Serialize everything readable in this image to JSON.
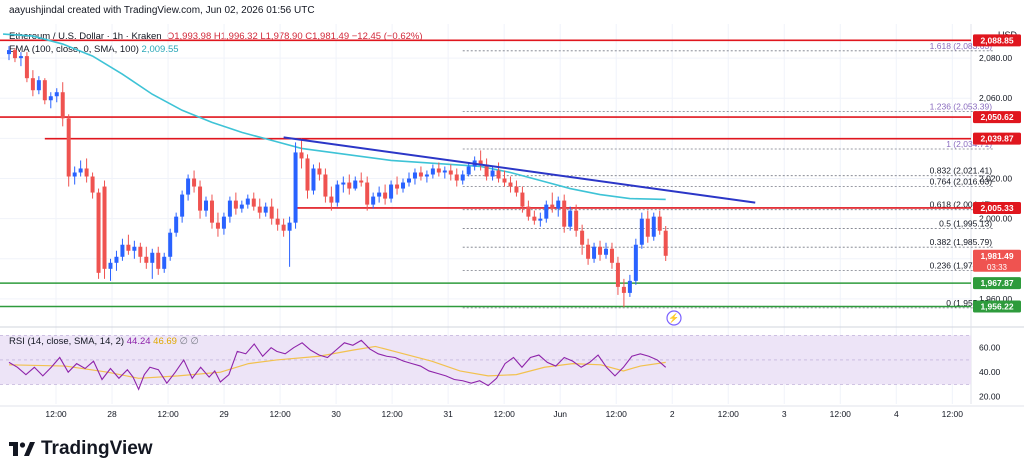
{
  "publisher_line": "aayushjindal created with TradingView.com, Jun 02, 2026 01:56 UTC",
  "legend": {
    "symbol": "Ethereum / U.S. Dollar · 1h · Kraken",
    "ohlc": "O1,993.98 H1,996.32 L1,978.90 C1,981.49 −12.45 (−0.62%)",
    "ema_label": "EMA (100, close, 0, SMA, 100)",
    "ema_value": "2,009.55",
    "rsi_label": "RSI (14, close, SMA, 14, 2)",
    "rsi_value": "44.24",
    "rsi_sma_value": "46.69",
    "rsi_extra": "∅ ∅"
  },
  "brand": "TradingView",
  "currency": "USD",
  "colors": {
    "up": "#26a69a",
    "down": "#ef5350",
    "ema": "#3ec3d6",
    "trendline": "#2b36c7",
    "resistance": "#e0161e",
    "support": "#2e9b3c",
    "rsi": "#8e24aa",
    "rsi_sma": "#f2c14e"
  },
  "chart_data": {
    "type": "candlestick",
    "price_axis": {
      "ylim": [
        1948,
        2097
      ],
      "ticks": [
        "2,080.00",
        "2,060.00",
        "2,020.00",
        "2,000.00",
        "1,980.00",
        "1,960.00"
      ]
    },
    "time_axis": {
      "labels": [
        "12:00",
        "28",
        "12:00",
        "29",
        "12:00",
        "30",
        "12:00",
        "31",
        "12:00",
        "Jun",
        "12:00",
        "2",
        "12:00",
        "3",
        "12:00",
        "4",
        "12:00"
      ],
      "label_hours": [
        12,
        24,
        36,
        48,
        60,
        72,
        84,
        96,
        108,
        120,
        132,
        144,
        156,
        168,
        180,
        192,
        204
      ],
      "xlim_hours": [
        0,
        208
      ]
    },
    "candles": [
      [
        1,
        2082,
        2086,
        2079,
        2084
      ],
      [
        2,
        2084,
        2085,
        2078,
        2080
      ],
      [
        3,
        2080,
        2083,
        2076,
        2081
      ],
      [
        4,
        2081,
        2083,
        2068,
        2070
      ],
      [
        5,
        2070,
        2074,
        2061,
        2064
      ],
      [
        6,
        2064,
        2071,
        2062,
        2069
      ],
      [
        7,
        2069,
        2070,
        2057,
        2059
      ],
      [
        8,
        2059,
        2063,
        2055,
        2061
      ],
      [
        9,
        2061,
        2065,
        2058,
        2063
      ],
      [
        10,
        2063,
        2068,
        2046,
        2050
      ],
      [
        11,
        2050,
        2052,
        2016,
        2021
      ],
      [
        12,
        2021,
        2026,
        2017,
        2023
      ],
      [
        13,
        2023,
        2029,
        2021,
        2025
      ],
      [
        14,
        2025,
        2030,
        2018,
        2021
      ],
      [
        15,
        2021,
        2023,
        2010,
        2013
      ],
      [
        16,
        2013,
        2015,
        1970,
        1973
      ],
      [
        17,
        2016,
        2019,
        1970,
        1975
      ],
      [
        18,
        1975,
        1980,
        1969,
        1978
      ],
      [
        19,
        1978,
        1984,
        1974,
        1981
      ],
      [
        20,
        1981,
        1990,
        1979,
        1987
      ],
      [
        21,
        1987,
        1992,
        1982,
        1984
      ],
      [
        22,
        1984,
        1989,
        1980,
        1986
      ],
      [
        23,
        1986,
        1988,
        1978,
        1981
      ],
      [
        24,
        1981,
        1986,
        1975,
        1978
      ],
      [
        25,
        1978,
        1985,
        1970,
        1983
      ],
      [
        26,
        1983,
        1986,
        1972,
        1975
      ],
      [
        27,
        1975,
        1983,
        1973,
        1981
      ],
      [
        28,
        1981,
        1995,
        1979,
        1993
      ],
      [
        29,
        1993,
        2003,
        1991,
        2001
      ],
      [
        30,
        2001,
        2014,
        1998,
        2012
      ],
      [
        31,
        2012,
        2022,
        2009,
        2020
      ],
      [
        32,
        2020,
        2024,
        2013,
        2016
      ],
      [
        33,
        2016,
        2019,
        2000,
        2004
      ],
      [
        34,
        2004,
        2011,
        2001,
        2009
      ],
      [
        35,
        2009,
        2012,
        1995,
        1998
      ],
      [
        36,
        1998,
        2003,
        1991,
        1995
      ],
      [
        37,
        1995,
        2003,
        1992,
        2001
      ],
      [
        38,
        2001,
        2011,
        1998,
        2009
      ],
      [
        39,
        2009,
        2013,
        2002,
        2005
      ],
      [
        40,
        2005,
        2009,
        2003,
        2007
      ],
      [
        41,
        2007,
        2012,
        2005,
        2010
      ],
      [
        42,
        2010,
        2013,
        2004,
        2006
      ],
      [
        43,
        2006,
        2010,
        2000,
        2003
      ],
      [
        44,
        2003,
        2008,
        2001,
        2006
      ],
      [
        45,
        2006,
        2010,
        1997,
        2000
      ],
      [
        46,
        2000,
        2005,
        1994,
        1997
      ],
      [
        47,
        1997,
        2000,
        1991,
        1994
      ],
      [
        48,
        1994,
        2001,
        1976,
        1998
      ],
      [
        49,
        1998,
        2038,
        1995,
        2033
      ],
      [
        50,
        2033,
        2040,
        2025,
        2030
      ],
      [
        51,
        2030,
        2032,
        2010,
        2014
      ],
      [
        52,
        2014,
        2027,
        2012,
        2025
      ],
      [
        53,
        2025,
        2028,
        2019,
        2022
      ],
      [
        54,
        2022,
        2025,
        2008,
        2011
      ],
      [
        55,
        2011,
        2016,
        2004,
        2008
      ],
      [
        56,
        2008,
        2019,
        2006,
        2017
      ],
      [
        57,
        2017,
        2021,
        2013,
        2018
      ],
      [
        58,
        2018,
        2022,
        2012,
        2015
      ],
      [
        59,
        2015,
        2021,
        2014,
        2019
      ],
      [
        60,
        2019,
        2023,
        2016,
        2018
      ],
      [
        61,
        2018,
        2021,
        2004,
        2007
      ],
      [
        62,
        2007,
        2013,
        2005,
        2011
      ],
      [
        63,
        2011,
        2016,
        2008,
        2013
      ],
      [
        64,
        2013,
        2017,
        2007,
        2010
      ],
      [
        65,
        2010,
        2019,
        2008,
        2017
      ],
      [
        66,
        2017,
        2021,
        2012,
        2015
      ],
      [
        67,
        2015,
        2020,
        2013,
        2018
      ],
      [
        68,
        2018,
        2023,
        2016,
        2020
      ],
      [
        69,
        2020,
        2025,
        2017,
        2023
      ],
      [
        70,
        2023,
        2026,
        2019,
        2021
      ],
      [
        71,
        2021,
        2024,
        2018,
        2022
      ],
      [
        72,
        2022,
        2027,
        2020,
        2025
      ],
      [
        73,
        2025,
        2028,
        2021,
        2023
      ],
      [
        74,
        2023,
        2026,
        2020,
        2024
      ],
      [
        75,
        2024,
        2027,
        2019,
        2022
      ],
      [
        76,
        2022,
        2025,
        2016,
        2019
      ],
      [
        77,
        2019,
        2024,
        2017,
        2022
      ],
      [
        78,
        2022,
        2028,
        2021,
        2026
      ],
      [
        79,
        2026,
        2031,
        2024,
        2029
      ],
      [
        80,
        2029,
        2034,
        2024,
        2027
      ],
      [
        81,
        2027,
        2030,
        2019,
        2021
      ],
      [
        82,
        2021,
        2026,
        2019,
        2024
      ],
      [
        83,
        2024,
        2028,
        2018,
        2020
      ],
      [
        84,
        2020,
        2024,
        2016,
        2018
      ],
      [
        85,
        2018,
        2021,
        2013,
        2016
      ],
      [
        86,
        2016,
        2019,
        2011,
        2013
      ],
      [
        87,
        2013,
        2016,
        2003,
        2006
      ],
      [
        88,
        2006,
        2009,
        1999,
        2001
      ],
      [
        89,
        2001,
        2004,
        1997,
        1999
      ],
      [
        90,
        1999,
        2003,
        1996,
        2000
      ],
      [
        91,
        2000,
        2009,
        1998,
        2007
      ],
      [
        92,
        2007,
        2013,
        2003,
        2005
      ],
      [
        93,
        2005,
        2011,
        2001,
        2009
      ],
      [
        94,
        2009,
        2012,
        1993,
        1996
      ],
      [
        95,
        1996,
        2006,
        1994,
        2004
      ],
      [
        96,
        2004,
        2007,
        1991,
        1994
      ],
      [
        97,
        1994,
        1997,
        1982,
        1987
      ],
      [
        98,
        1987,
        1990,
        1977,
        1980
      ],
      [
        99,
        1980,
        1988,
        1978,
        1986
      ],
      [
        100,
        1986,
        1989,
        1979,
        1982
      ],
      [
        101,
        1982,
        1988,
        1980,
        1985
      ],
      [
        102,
        1985,
        1988,
        1975,
        1978
      ],
      [
        103,
        1978,
        1981,
        1962,
        1966
      ],
      [
        104,
        1966,
        1970,
        1956,
        1963
      ],
      [
        105,
        1963,
        1972,
        1961,
        1969
      ],
      [
        106,
        1969,
        1990,
        1967,
        1987
      ],
      [
        107,
        1987,
        2003,
        1985,
        2000
      ],
      [
        108,
        2000,
        2004,
        1988,
        1991
      ],
      [
        109,
        1991,
        2003,
        1989,
        2001
      ],
      [
        110,
        2001,
        2004,
        1992,
        1994
      ],
      [
        111,
        1994,
        1996.32,
        1978.9,
        1981.49
      ]
    ],
    "ema": {
      "name": "EMA (100, close, 0, SMA, 100)",
      "points": [
        [
          0,
          2092
        ],
        [
          5,
          2091
        ],
        [
          10,
          2087
        ],
        [
          15,
          2081
        ],
        [
          20,
          2072
        ],
        [
          25,
          2062
        ],
        [
          30,
          2054
        ],
        [
          35,
          2048
        ],
        [
          40,
          2043
        ],
        [
          45,
          2039
        ],
        [
          50,
          2035
        ],
        [
          55,
          2033
        ],
        [
          60,
          2031
        ],
        [
          65,
          2029
        ],
        [
          70,
          2028
        ],
        [
          75,
          2027
        ],
        [
          80,
          2026
        ],
        [
          85,
          2023
        ],
        [
          90,
          2019
        ],
        [
          95,
          2015
        ],
        [
          100,
          2012
        ],
        [
          105,
          2010
        ],
        [
          111,
          2009.55
        ]
      ]
    },
    "horizontal_lines": [
      {
        "value": 2088.85,
        "x_start": 0,
        "label": "2,088.85",
        "kind": "resistance"
      },
      {
        "value": 2050.62,
        "x_start": 0,
        "label": "2,050.62",
        "kind": "resistance"
      },
      {
        "value": 2039.87,
        "x_start": 7,
        "label": "2,039.87",
        "kind": "resistance"
      },
      {
        "value": 2005.33,
        "x_start": 49,
        "label": "2,005.33",
        "kind": "resistance"
      },
      {
        "value": 1967.87,
        "x_start": 0,
        "label": "1,967.87",
        "kind": "support"
      },
      {
        "value": 1956.22,
        "x_start": 0,
        "label": "1,956.22",
        "kind": "support"
      }
    ],
    "trendline": {
      "x": [
        47,
        126
      ],
      "y": [
        2040.5,
        2008
      ]
    },
    "current_price": {
      "value": 1981.49,
      "label": "1,981.49",
      "countdown": "03:33"
    },
    "fibonacci": {
      "x_range": [
        77,
        166
      ],
      "levels": [
        {
          "ratio": "1.618",
          "value": 2083.63,
          "label": "1.618 (2,083.63)"
        },
        {
          "ratio": "1.236",
          "value": 2053.39,
          "label": "1.236 (2,053.39)"
        },
        {
          "ratio": "1",
          "value": 2034.71,
          "label": "1 (2,034.71)"
        },
        {
          "ratio": "0.832",
          "value": 2021.41,
          "label": "0.832 (2,021.41)"
        },
        {
          "ratio": "0.764",
          "value": 2016.03,
          "label": "0.764 (2,016.03)"
        },
        {
          "ratio": "0.618",
          "value": 2004.47,
          "label": "0.618 (2,004.47)"
        },
        {
          "ratio": "0.5",
          "value": 1995.13,
          "label": "0.5 (1,995.13)"
        },
        {
          "ratio": "0.382",
          "value": 1985.79,
          "label": "0.382 (1,985.79)"
        },
        {
          "ratio": "0.236",
          "value": 1974.23,
          "label": "0.236 (1,974.23)"
        },
        {
          "ratio": "0",
          "value": 1955.55,
          "label": "0 (1,955.55)"
        }
      ]
    },
    "rsi": {
      "ylim": [
        14,
        72
      ],
      "ticks": [
        "60.00",
        "40.00",
        "20.00"
      ],
      "band": [
        30,
        70
      ],
      "values": [
        [
          0,
          48
        ],
        [
          3,
          44
        ],
        [
          6,
          38
        ],
        [
          9,
          44
        ],
        [
          12,
          37
        ],
        [
          15,
          44
        ],
        [
          18,
          52
        ],
        [
          21,
          40
        ],
        [
          24,
          47
        ],
        [
          27,
          43
        ],
        [
          30,
          49
        ],
        [
          33,
          34
        ],
        [
          36,
          43
        ],
        [
          39,
          35
        ],
        [
          42,
          42
        ],
        [
          44,
          36
        ],
        [
          46,
          26
        ],
        [
          48,
          38
        ],
        [
          50,
          44
        ],
        [
          53,
          42
        ],
        [
          56,
          31
        ],
        [
          59,
          40
        ],
        [
          62,
          50
        ],
        [
          65,
          35
        ],
        [
          68,
          44
        ],
        [
          71,
          36
        ],
        [
          73,
          41
        ],
        [
          75,
          32
        ],
        [
          78,
          38
        ],
        [
          81,
          57
        ],
        [
          84,
          55
        ],
        [
          87,
          63
        ],
        [
          90,
          53
        ],
        [
          93,
          60
        ],
        [
          95,
          57
        ],
        [
          98,
          55
        ],
        [
          101,
          60
        ],
        [
          104,
          64
        ],
        [
          107,
          58
        ],
        [
          110,
          54
        ],
        [
          113,
          52
        ],
        [
          116,
          58
        ],
        [
          119,
          64
        ],
        [
          122,
          62
        ],
        [
          125,
          66
        ],
        [
          128,
          59
        ],
        [
          131,
          55
        ],
        [
          134,
          53
        ],
        [
          137,
          52
        ],
        [
          140,
          49
        ],
        [
          143,
          47
        ],
        [
          146,
          45
        ],
        [
          149,
          41
        ],
        [
          152,
          39
        ],
        [
          155,
          37
        ],
        [
          158,
          34
        ],
        [
          161,
          33
        ],
        [
          164,
          31
        ],
        [
          167,
          33
        ],
        [
          170,
          29
        ],
        [
          173,
          35
        ],
        [
          176,
          47
        ],
        [
          179,
          52
        ],
        [
          182,
          44
        ],
        [
          185,
          52
        ],
        [
          188,
          54
        ],
        [
          191,
          48
        ],
        [
          194,
          45
        ],
        [
          197,
          52
        ],
        [
          200,
          49
        ],
        [
          203,
          44
        ],
        [
          206,
          48
        ],
        [
          209,
          54
        ],
        [
          212,
          44
        ],
        [
          215,
          37
        ],
        [
          218,
          44
        ],
        [
          221,
          53
        ],
        [
          224,
          55
        ],
        [
          227,
          53
        ],
        [
          230,
          50
        ],
        [
          233,
          44
        ]
      ],
      "sma": [
        [
          0,
          46
        ],
        [
          20,
          45
        ],
        [
          35,
          40
        ],
        [
          46,
          35
        ],
        [
          60,
          37
        ],
        [
          75,
          40
        ],
        [
          85,
          47
        ],
        [
          95,
          50
        ],
        [
          110,
          53
        ],
        [
          122,
          58
        ],
        [
          130,
          61
        ],
        [
          140,
          55
        ],
        [
          150,
          49
        ],
        [
          160,
          41
        ],
        [
          170,
          37
        ],
        [
          180,
          38
        ],
        [
          190,
          44
        ],
        [
          200,
          47
        ],
        [
          210,
          46
        ],
        [
          218,
          41
        ],
        [
          224,
          45
        ],
        [
          233,
          48
        ]
      ]
    }
  }
}
